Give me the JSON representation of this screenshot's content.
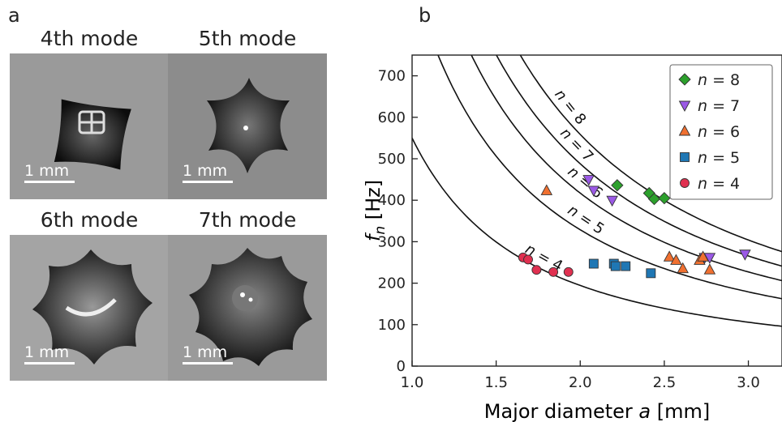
{
  "panel_a_label": "a",
  "panel_b_label": "b",
  "photos": [
    {
      "title": "4th mode",
      "scale_label": "1 mm",
      "icon": "droplet-4-lobe-photo"
    },
    {
      "title": "5th mode",
      "scale_label": "1 mm",
      "icon": "droplet-5-lobe-photo"
    },
    {
      "title": "6th mode",
      "scale_label": "1 mm",
      "icon": "droplet-6-lobe-photo"
    },
    {
      "title": "7th mode",
      "scale_label": "1 mm",
      "icon": "droplet-7-lobe-photo"
    }
  ],
  "chart_data": {
    "type": "scatter",
    "xlabel_prefix": "Major diameter ",
    "xlabel_var": "a",
    "xlabel_suffix": " [mm]",
    "ylabel_var": "f",
    "ylabel_sub": "n",
    "ylabel_suffix": " [Hz]",
    "xlim": [
      1.0,
      3.2
    ],
    "ylim": [
      0,
      750
    ],
    "xticks": [
      "1.0",
      "1.5",
      "2.0",
      "2.5",
      "3.0"
    ],
    "xtick_values": [
      1.0,
      1.5,
      2.0,
      2.5,
      3.0
    ],
    "yticks": [
      "0",
      "100",
      "200",
      "300",
      "400",
      "500",
      "600",
      "700"
    ],
    "ytick_values": [
      0,
      100,
      200,
      300,
      400,
      500,
      600,
      700
    ],
    "legend_position": "top-right",
    "series": [
      {
        "name": "n = 8",
        "n": 8,
        "marker": "diamond",
        "color": "#2ca02c",
        "points": [
          [
            2.22,
            436
          ],
          [
            2.41,
            417
          ],
          [
            2.44,
            403
          ],
          [
            2.5,
            405
          ]
        ]
      },
      {
        "name": "n = 7",
        "n": 7,
        "marker": "triangle-down",
        "color": "#9b59e6",
        "points": [
          [
            2.05,
            450
          ],
          [
            2.08,
            424
          ],
          [
            2.19,
            400
          ],
          [
            2.74,
            262
          ],
          [
            2.77,
            262
          ],
          [
            2.98,
            270
          ]
        ]
      },
      {
        "name": "n = 6",
        "n": 6,
        "marker": "triangle-up",
        "color": "#f07030",
        "points": [
          [
            1.8,
            423
          ],
          [
            2.53,
            263
          ],
          [
            2.57,
            255
          ],
          [
            2.61,
            235
          ],
          [
            2.71,
            255
          ],
          [
            2.73,
            263
          ],
          [
            2.77,
            232
          ]
        ]
      },
      {
        "name": "n = 5",
        "n": 5,
        "marker": "square",
        "color": "#1f77b4",
        "points": [
          [
            2.08,
            247
          ],
          [
            2.2,
            247
          ],
          [
            2.21,
            241
          ],
          [
            2.27,
            241
          ],
          [
            2.42,
            224
          ]
        ]
      },
      {
        "name": "n = 4",
        "n": 4,
        "marker": "circle",
        "color": "#e03050",
        "points": [
          [
            1.66,
            262
          ],
          [
            1.69,
            257
          ],
          [
            1.74,
            232
          ],
          [
            1.84,
            227
          ],
          [
            1.93,
            227
          ]
        ]
      }
    ],
    "curves": [
      {
        "label": "n = 4",
        "n": 4,
        "coef": 550
      },
      {
        "label": "n = 5",
        "n": 5,
        "coef": 930
      },
      {
        "label": "n = 6",
        "n": 6,
        "coef": 1180
      },
      {
        "label": "n = 7",
        "n": 7,
        "coef": 1380
      },
      {
        "label": "n = 8",
        "n": 8,
        "coef": 1580
      }
    ]
  }
}
